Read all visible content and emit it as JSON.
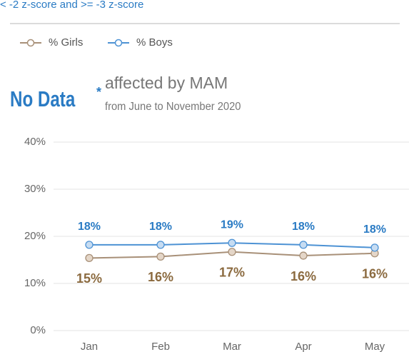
{
  "chart_data": {
    "type": "line",
    "subtitle": "< -2 z-score and >= -3 z-score",
    "annotations": [
      "No Data",
      "*",
      "affected by MAM",
      "from June to November 2020"
    ],
    "categories": [
      "Jan",
      "Feb",
      "Mar",
      "Apr",
      "May"
    ],
    "series": [
      {
        "name": "% Girls",
        "color": "#a89078",
        "label_color": "#8b6a3f",
        "values": [
          15.4,
          15.7,
          16.7,
          15.9,
          16.4
        ],
        "value_labels": [
          "15%",
          "16%",
          "17%",
          "16%",
          "16%"
        ]
      },
      {
        "name": "% Boys",
        "color": "#4d92d4",
        "label_color": "#2a7bc4",
        "values": [
          18.2,
          18.2,
          18.6,
          18.2,
          17.6
        ],
        "value_labels": [
          "18%",
          "18%",
          "19%",
          "18%",
          "18%"
        ]
      }
    ],
    "ylim": [
      0,
      40
    ],
    "yticks": [
      {
        "value": 0,
        "label": "0%"
      },
      {
        "value": 10,
        "label": "10%"
      },
      {
        "value": 20,
        "label": "20%"
      },
      {
        "value": 30,
        "label": "30%"
      },
      {
        "value": 40,
        "label": "40%"
      }
    ],
    "grid": true
  }
}
